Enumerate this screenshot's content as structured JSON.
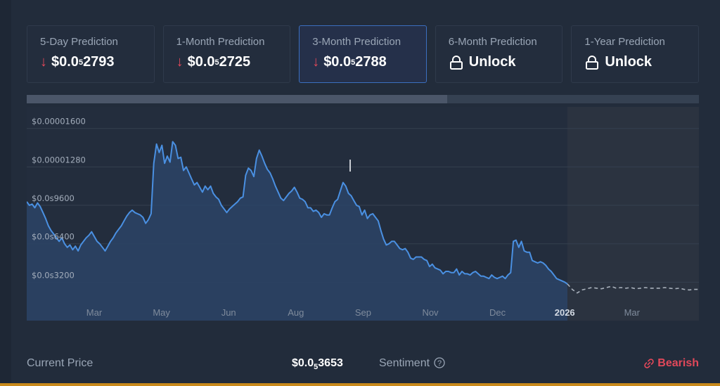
{
  "cards": [
    {
      "label": "5-Day Prediction",
      "value_main": "$0.0",
      "value_sub": "5",
      "value_tail": "2793",
      "icon": "down-arrow-icon"
    },
    {
      "label": "1-Month Prediction",
      "value_main": "$0.0",
      "value_sub": "5",
      "value_tail": "2725",
      "icon": "down-arrow-icon"
    },
    {
      "label": "3-Month Prediction",
      "value_main": "$0.0",
      "value_sub": "5",
      "value_tail": "2788",
      "icon": "down-arrow-icon",
      "active": true
    },
    {
      "label": "6-Month Prediction",
      "value_main": "Unlock",
      "icon": "lock-icon"
    },
    {
      "label": "1-Year Prediction",
      "value_main": "Unlock",
      "icon": "lock-icon"
    }
  ],
  "arrow_glyph": "↓",
  "colors": {
    "line": "#4a90e2",
    "forecast": "#a9b1bc",
    "bearish": "#e2485a",
    "accent": "#3b6fc0"
  },
  "range_fraction": 0.625,
  "chart_data": {
    "type": "line",
    "y_ticks": [
      "$0.00001600",
      "$0.00001280",
      "$0.0s9600",
      "$0.0s6400",
      "$0.0s3200"
    ],
    "y_tick_values": [
      16,
      12.8,
      9.6,
      6.4,
      3.2
    ],
    "ylim": [
      0,
      17.8
    ],
    "x_ticks": [
      "Mar",
      "May",
      "Jun",
      "Aug",
      "Sep",
      "Nov",
      "Dec",
      "2026",
      "Mar"
    ],
    "x_tick_bold": [
      false,
      false,
      false,
      false,
      false,
      false,
      false,
      true,
      false
    ],
    "series": [
      {
        "values": [
          9.9,
          9.6,
          9.7,
          9.4,
          9.8,
          9.5,
          9.0,
          8.5,
          7.9,
          7.5,
          7.2,
          6.9,
          6.6,
          6.9,
          6.4,
          6.1,
          6.3,
          5.9,
          6.2,
          5.8,
          6.3,
          6.6,
          6.9,
          7.1,
          7.4,
          7.0,
          6.6,
          6.4,
          6.1,
          5.8,
          6.2,
          6.6,
          6.9,
          7.3,
          7.6,
          7.9,
          8.3,
          8.7,
          9.0,
          9.2,
          9.0,
          8.9,
          8.8,
          8.6,
          8.1,
          8.4,
          8.9,
          13.1,
          14.7,
          14.0,
          14.6,
          13.1,
          13.7,
          13.2,
          14.9,
          14.6,
          13.5,
          13.6,
          12.5,
          12.8,
          12.3,
          11.8,
          11.3,
          11.5,
          11.1,
          10.7,
          11.2,
          10.9,
          11.2,
          10.6,
          10.3,
          10.1,
          9.6,
          9.3,
          9.0,
          9.3,
          9.5,
          9.7,
          9.9,
          10.2,
          10.3,
          12.1,
          12.7,
          12.5,
          12.0,
          13.5,
          14.2,
          13.7,
          13.1,
          12.6,
          12.3,
          11.8,
          11.2,
          10.7,
          10.2,
          10.0,
          10.3,
          10.6,
          10.8,
          11.1,
          10.7,
          10.2,
          10.1,
          9.9,
          9.4,
          9.4,
          9.1,
          9.2,
          9.0,
          8.6,
          8.9,
          8.8,
          8.8,
          9.4,
          9.9,
          10.1,
          10.8,
          11.5,
          11.2,
          10.6,
          10.4,
          10.0,
          9.6,
          9.5,
          8.8,
          9.2,
          8.5,
          8.8,
          8.9,
          8.6,
          8.3,
          7.5,
          6.8,
          6.3,
          6.4,
          6.6,
          6.6,
          6.3,
          6.0,
          5.9,
          6.0,
          5.7,
          5.2,
          5.1,
          5.3,
          5.3,
          5.3,
          5.1,
          5.0,
          4.5,
          4.7,
          4.4,
          4.3,
          4.2,
          3.9,
          4.1,
          4.1,
          4.0,
          4.0,
          4.3,
          3.8,
          4.1,
          3.9,
          3.9,
          3.8,
          4.0,
          4.1,
          3.9,
          3.7,
          3.7,
          3.6,
          3.5,
          3.8,
          3.6,
          3.5,
          3.6,
          3.7,
          3.5,
          3.8,
          4.0,
          6.6,
          6.7,
          6.1,
          6.6,
          5.8,
          5.7,
          5.7,
          5.0,
          4.9,
          4.8,
          4.9,
          4.8,
          4.6,
          4.3,
          4.1,
          3.8,
          3.5,
          3.4,
          3.3,
          3.2,
          3.05
        ]
      },
      {
        "values": [
          3.05,
          2.6,
          2.3,
          2.55,
          2.65,
          2.75,
          2.7,
          2.65,
          2.75,
          2.85,
          2.7,
          2.75,
          2.7,
          2.75,
          2.65,
          2.7,
          2.75,
          2.7,
          2.7,
          2.7,
          2.75,
          2.7,
          2.65,
          2.7,
          2.6,
          2.55,
          2.6,
          2.6
        ]
      }
    ]
  },
  "footer": {
    "current_label": "Current Price",
    "current_main": "$0.0",
    "current_sub": "5",
    "current_tail": "3653",
    "sentiment_label": "Sentiment",
    "sentiment_value": "Bearish"
  }
}
